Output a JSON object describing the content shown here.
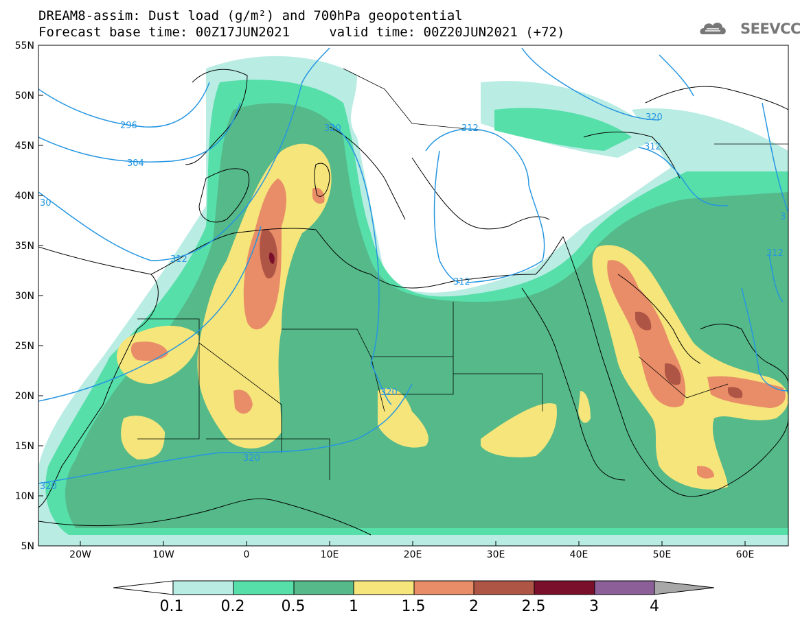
{
  "header": {
    "title_line1": "DREAM8-assim: Dust load (g/m²) and 700hPa geopotential",
    "title_line2": "Forecast base time: 00Z17JUN2021     valid time: 00Z20JUN2021 (+72)",
    "logo_text": "SEEVCCC"
  },
  "map": {
    "lon_range": [
      -25,
      65
    ],
    "lat_range": [
      5,
      55
    ],
    "lat_ticks": [
      "55N",
      "50N",
      "45N",
      "40N",
      "35N",
      "30N",
      "25N",
      "20N",
      "15N",
      "10N",
      "5N"
    ],
    "lon_ticks": [
      "20W",
      "10W",
      "0",
      "10E",
      "20E",
      "30E",
      "40E",
      "50E",
      "60E"
    ],
    "contour_labels": [
      "296",
      "304",
      "30",
      "312",
      "312",
      "320",
      "320",
      "312",
      "320",
      "320",
      "320",
      "312",
      "312",
      "3"
    ],
    "colors": {
      "contour": "#2596e1",
      "coast": "#000000"
    }
  },
  "colorbar": {
    "labels": [
      "0.1",
      "0.2",
      "0.5",
      "1",
      "1.5",
      "2",
      "2.5",
      "3",
      "4"
    ],
    "colors": [
      "#ffffff",
      "#b9ece3",
      "#57dfaa",
      "#55b98a",
      "#f5e57b",
      "#e98d68",
      "#ae5545",
      "#7a0f2c",
      "#8c5f99",
      "#a8a8a8"
    ]
  }
}
